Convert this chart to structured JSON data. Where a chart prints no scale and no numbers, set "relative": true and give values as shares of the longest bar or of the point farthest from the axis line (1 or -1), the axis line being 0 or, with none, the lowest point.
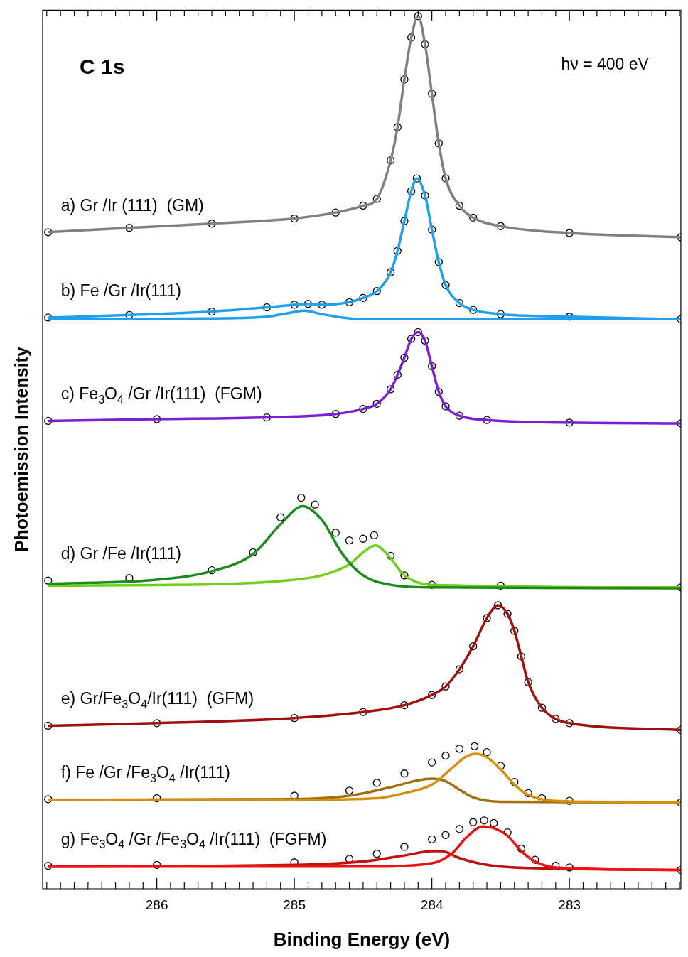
{
  "chart_data": {
    "type": "line",
    "relative": true,
    "xlabel": "Binding Energy (eV)",
    "ylabel": "Photoemission Intensity",
    "annotations": [
      "C 1s",
      "hν = 400 eV"
    ],
    "xlim": [
      286.83,
      282.19
    ],
    "xticks": [
      {
        "value": 286.8,
        "label": null
      },
      {
        "value": 286.7,
        "label": null
      },
      {
        "value": 286.6,
        "label": null
      },
      {
        "value": 286.5,
        "label": null
      },
      {
        "value": 286.4,
        "label": null
      },
      {
        "value": 286.3,
        "label": null
      },
      {
        "value": 286.2,
        "label": null
      },
      {
        "value": 286.1,
        "label": null
      },
      286,
      {
        "value": 285.9,
        "label": null
      },
      {
        "value": 285.8,
        "label": null
      },
      {
        "value": 285.7,
        "label": null
      },
      {
        "value": 285.6,
        "label": null
      },
      {
        "value": 285.5,
        "label": null
      },
      {
        "value": 285.4,
        "label": null
      },
      {
        "value": 285.3,
        "label": null
      },
      {
        "value": 285.2,
        "label": null
      },
      {
        "value": 285.1,
        "label": null
      },
      285,
      {
        "value": 284.9,
        "label": null
      },
      {
        "value": 284.8,
        "label": null
      },
      {
        "value": 284.7,
        "label": null
      },
      {
        "value": 284.6,
        "label": null
      },
      {
        "value": 284.5,
        "label": null
      },
      {
        "value": 284.4,
        "label": null
      },
      {
        "value": 284.3,
        "label": null
      },
      {
        "value": 284.2,
        "label": null
      },
      {
        "value": 284.1,
        "label": null
      },
      284,
      {
        "value": 283.9,
        "label": null
      },
      {
        "value": 283.8,
        "label": null
      },
      {
        "value": 283.7,
        "label": null
      },
      {
        "value": 283.6,
        "label": null
      },
      {
        "value": 283.5,
        "label": null
      },
      {
        "value": 283.4,
        "label": null
      },
      {
        "value": 283.3,
        "label": null
      },
      {
        "value": 283.2,
        "label": null
      },
      {
        "value": 283.1,
        "label": null
      },
      283,
      {
        "value": 282.9,
        "label": null
      },
      {
        "value": 282.8,
        "label": null
      },
      {
        "value": 282.7,
        "label": null
      },
      {
        "value": 282.6,
        "label": null
      },
      {
        "value": 282.5,
        "label": null
      },
      {
        "value": 282.4,
        "label": null
      },
      {
        "value": 282.3,
        "label": null
      },
      {
        "value": 282.2,
        "label": null
      }
    ],
    "tick_labels": "x",
    "legend": false,
    "grid": false,
    "line_style": "solid",
    "series": [
      {
        "name": "a) Gr /Ir (111)  (GM)",
        "type": "scatter",
        "marker": "circle",
        "color": "#000000",
        "x": [
          286.79,
          286.2,
          285.6,
          285.0,
          284.7,
          284.5,
          284.4,
          284.3,
          284.25,
          284.2,
          284.15,
          284.1,
          284.05,
          284.0,
          283.95,
          283.9,
          283.8,
          283.7,
          283.5,
          283.0,
          282.19
        ],
        "values": [
          0.747,
          0.752,
          0.757,
          0.763,
          0.77,
          0.778,
          0.786,
          0.831,
          0.87,
          0.926,
          0.975,
          1.0,
          0.967,
          0.909,
          0.851,
          0.81,
          0.778,
          0.764,
          0.754,
          0.746,
          0.741
        ]
      },
      {
        "type": "line",
        "color": "#808080",
        "x": [
          286.79,
          286.2,
          285.6,
          285.0,
          284.7,
          284.5,
          284.4,
          284.3,
          284.25,
          284.2,
          284.15,
          284.1,
          284.05,
          284.0,
          283.95,
          283.9,
          283.8,
          283.7,
          283.5,
          283.0,
          282.19
        ],
        "values": [
          0.747,
          0.752,
          0.757,
          0.763,
          0.77,
          0.778,
          0.786,
          0.831,
          0.87,
          0.926,
          0.975,
          1.0,
          0.967,
          0.909,
          0.851,
          0.81,
          0.778,
          0.764,
          0.754,
          0.746,
          0.741
        ]
      },
      {
        "name": "b) Fe /Gr /Ir(111)",
        "type": "scatter",
        "marker": "circle",
        "color": "#000000",
        "x": [
          286.79,
          286.2,
          285.6,
          285.2,
          285.0,
          284.9,
          284.8,
          284.6,
          284.5,
          284.4,
          284.3,
          284.25,
          284.2,
          284.15,
          284.11,
          284.05,
          284.0,
          283.95,
          283.9,
          283.8,
          283.7,
          283.5,
          283.0,
          282.19
        ],
        "values": [
          0.647,
          0.65,
          0.654,
          0.659,
          0.662,
          0.663,
          0.662,
          0.665,
          0.67,
          0.678,
          0.7,
          0.725,
          0.76,
          0.795,
          0.81,
          0.79,
          0.75,
          0.712,
          0.685,
          0.664,
          0.656,
          0.651,
          0.648,
          0.645
        ]
      },
      {
        "type": "line",
        "color": "#1ea0f0",
        "x": [
          286.79,
          286.2,
          285.6,
          285.2,
          285.0,
          284.9,
          284.8,
          284.6,
          284.5,
          284.4,
          284.3,
          284.25,
          284.2,
          284.15,
          284.11,
          284.05,
          284.0,
          283.95,
          283.9,
          283.8,
          283.7,
          283.5,
          283.0,
          282.19
        ],
        "values": [
          0.647,
          0.65,
          0.654,
          0.659,
          0.662,
          0.663,
          0.662,
          0.665,
          0.67,
          0.678,
          0.7,
          0.725,
          0.76,
          0.795,
          0.81,
          0.79,
          0.75,
          0.712,
          0.685,
          0.664,
          0.656,
          0.651,
          0.648,
          0.645
        ]
      },
      {
        "type": "line",
        "color": "#1ea0f0",
        "x": [
          286.79,
          285.6,
          285.2,
          285.05,
          284.93,
          284.8,
          284.65,
          284.5,
          283.5,
          282.19
        ],
        "values": [
          0.645,
          0.646,
          0.648,
          0.652,
          0.655,
          0.651,
          0.647,
          0.645,
          0.645,
          0.645
        ]
      },
      {
        "name": "c) Fe$_{3}$O$_{4}$ /Gr /Ir(111)  (FGM)",
        "type": "scatter",
        "marker": "circle",
        "color": "#000000",
        "x": [
          286.79,
          286.0,
          285.2,
          284.7,
          284.5,
          284.4,
          284.3,
          284.25,
          284.2,
          284.15,
          284.1,
          284.05,
          284.0,
          283.95,
          283.9,
          283.8,
          283.6,
          283.0,
          282.19
        ],
        "values": [
          0.526,
          0.528,
          0.53,
          0.534,
          0.54,
          0.546,
          0.563,
          0.58,
          0.6,
          0.622,
          0.63,
          0.62,
          0.59,
          0.56,
          0.543,
          0.532,
          0.527,
          0.524,
          0.523
        ]
      },
      {
        "type": "line",
        "color": "#7b1fd0",
        "x": [
          286.79,
          286.0,
          285.2,
          284.7,
          284.5,
          284.4,
          284.3,
          284.25,
          284.2,
          284.15,
          284.1,
          284.05,
          284.0,
          283.95,
          283.9,
          283.8,
          283.6,
          283.0,
          282.19
        ],
        "values": [
          0.526,
          0.528,
          0.53,
          0.534,
          0.54,
          0.546,
          0.563,
          0.58,
          0.6,
          0.622,
          0.63,
          0.62,
          0.59,
          0.56,
          0.543,
          0.532,
          0.527,
          0.524,
          0.523
        ]
      },
      {
        "name": "d) Gr /Fe /Ir(111)",
        "type": "scatter",
        "marker": "circle",
        "color": "#000000",
        "x": [
          286.79,
          286.2,
          285.6,
          285.3,
          285.1,
          284.95,
          284.85,
          284.7,
          284.6,
          284.5,
          284.42,
          284.3,
          284.2,
          284.0,
          283.5,
          282.19
        ],
        "values": [
          0.339,
          0.342,
          0.351,
          0.372,
          0.413,
          0.436,
          0.428,
          0.395,
          0.386,
          0.388,
          0.392,
          0.368,
          0.345,
          0.334,
          0.333,
          0.331
        ]
      },
      {
        "type": "line",
        "color": "#1a8a1a",
        "x": [
          286.79,
          286.0,
          285.6,
          285.3,
          285.1,
          284.94,
          284.8,
          284.65,
          284.5,
          284.3,
          284.0,
          282.19
        ],
        "values": [
          0.335,
          0.34,
          0.35,
          0.37,
          0.405,
          0.426,
          0.41,
          0.37,
          0.345,
          0.334,
          0.331,
          0.33
        ]
      },
      {
        "type": "line",
        "color": "#6fcf1a",
        "x": [
          286.79,
          285.5,
          285.0,
          284.8,
          284.6,
          284.5,
          284.41,
          284.3,
          284.2,
          284.0,
          282.19
        ],
        "values": [
          0.333,
          0.335,
          0.34,
          0.345,
          0.358,
          0.372,
          0.38,
          0.365,
          0.345,
          0.334,
          0.331
        ]
      },
      {
        "name": "e) Gr/Fe$_{3}$O$_{4}$/Ir(111)  (GFM)",
        "type": "scatter",
        "marker": "circle",
        "color": "#000000",
        "x": [
          286.79,
          286.0,
          285.0,
          284.5,
          284.2,
          284.0,
          283.9,
          283.8,
          283.7,
          283.6,
          283.52,
          283.45,
          283.4,
          283.35,
          283.3,
          283.2,
          283.1,
          283.0,
          282.19
        ],
        "values": [
          0.169,
          0.172,
          0.178,
          0.185,
          0.193,
          0.205,
          0.215,
          0.235,
          0.262,
          0.295,
          0.31,
          0.3,
          0.28,
          0.25,
          0.22,
          0.19,
          0.177,
          0.172,
          0.164
        ]
      },
      {
        "type": "line",
        "color": "#a01010",
        "x": [
          286.79,
          286.0,
          285.0,
          284.5,
          284.2,
          284.0,
          283.9,
          283.8,
          283.7,
          283.6,
          283.52,
          283.45,
          283.4,
          283.35,
          283.3,
          283.2,
          283.1,
          283.0,
          282.19
        ],
        "values": [
          0.169,
          0.172,
          0.178,
          0.185,
          0.193,
          0.205,
          0.215,
          0.235,
          0.262,
          0.295,
          0.31,
          0.3,
          0.28,
          0.25,
          0.22,
          0.19,
          0.177,
          0.172,
          0.164
        ]
      },
      {
        "name": "f) Fe /Gr /Fe$_{3}$O$_{4}$ /Ir(111)",
        "type": "scatter",
        "marker": "circle",
        "color": "#000000",
        "x": [
          286.79,
          286.0,
          285.0,
          284.6,
          284.4,
          284.2,
          284.0,
          283.9,
          283.8,
          283.69,
          283.6,
          283.5,
          283.4,
          283.3,
          283.2,
          283.0,
          282.19
        ],
        "values": [
          0.083,
          0.084,
          0.087,
          0.093,
          0.102,
          0.113,
          0.126,
          0.134,
          0.142,
          0.145,
          0.138,
          0.122,
          0.103,
          0.09,
          0.084,
          0.081,
          0.079
        ]
      },
      {
        "type": "line",
        "color": "#d4900c",
        "x": [
          286.79,
          285.0,
          284.4,
          284.2,
          284.0,
          283.85,
          283.75,
          283.68,
          283.6,
          283.5,
          283.4,
          283.3,
          283.1,
          282.19
        ],
        "values": [
          0.082,
          0.082,
          0.084,
          0.09,
          0.1,
          0.12,
          0.133,
          0.136,
          0.132,
          0.118,
          0.1,
          0.088,
          0.081,
          0.079
        ]
      },
      {
        "type": "line",
        "color": "#a0700c",
        "x": [
          286.79,
          285.0,
          284.6,
          284.3,
          284.1,
          284.0,
          283.9,
          283.8,
          283.7,
          283.5,
          282.19
        ],
        "values": [
          0.082,
          0.083,
          0.087,
          0.097,
          0.105,
          0.107,
          0.104,
          0.094,
          0.085,
          0.08,
          0.079
        ]
      },
      {
        "name": "g) Fe$_{3}$O$_{4}$ /Gr /Fe$_{3}$O$_{4}$ /Ir(111)  (FGFM)",
        "type": "scatter",
        "marker": "circle",
        "color": "#000000",
        "x": [
          286.79,
          286.0,
          285.0,
          284.6,
          284.4,
          284.2,
          284.0,
          283.9,
          283.8,
          283.7,
          283.62,
          283.55,
          283.45,
          283.35,
          283.25,
          283.1,
          283.0,
          282.19
        ],
        "values": [
          0.005,
          0.006,
          0.009,
          0.013,
          0.019,
          0.027,
          0.036,
          0.041,
          0.048,
          0.056,
          0.058,
          0.055,
          0.044,
          0.025,
          0.012,
          0.005,
          0.003,
          0.0
        ]
      },
      {
        "type": "line",
        "color": "#f01010",
        "x": [
          286.79,
          284.5,
          284.0,
          283.85,
          283.75,
          283.63,
          283.55,
          283.45,
          283.35,
          283.25,
          283.1,
          282.19
        ],
        "values": [
          0.004,
          0.004,
          0.008,
          0.02,
          0.038,
          0.051,
          0.049,
          0.04,
          0.022,
          0.01,
          0.003,
          0.0
        ]
      },
      {
        "type": "line",
        "color": "#c01010",
        "x": [
          286.79,
          285.0,
          284.5,
          284.2,
          284.0,
          283.93,
          283.8,
          283.6,
          283.4,
          282.19
        ],
        "values": [
          0.004,
          0.006,
          0.01,
          0.017,
          0.022,
          0.022,
          0.014,
          0.006,
          0.003,
          0.0
        ]
      }
    ]
  }
}
